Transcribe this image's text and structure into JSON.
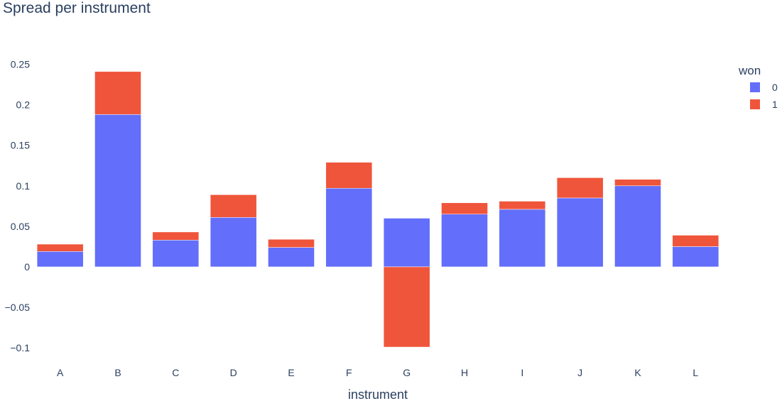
{
  "chart_data": {
    "type": "bar",
    "barmode": "relative",
    "title": "Spread per instrument",
    "xlabel": "instrument",
    "ylabel": "",
    "categories": [
      "A",
      "B",
      "C",
      "D",
      "E",
      "F",
      "G",
      "H",
      "I",
      "J",
      "K",
      "L"
    ],
    "series": [
      {
        "name": "0",
        "color": "#636efa",
        "values": [
          0.019,
          0.188,
          0.033,
          0.061,
          0.024,
          0.097,
          0.06,
          0.065,
          0.071,
          0.085,
          0.1,
          0.025
        ]
      },
      {
        "name": "1",
        "color": "#ef553b",
        "values": [
          0.009,
          0.053,
          0.01,
          0.028,
          0.01,
          0.032,
          -0.099,
          0.014,
          0.01,
          0.025,
          0.008,
          0.014
        ]
      }
    ],
    "ylim": [
      -0.113,
      0.275
    ],
    "yticks": [
      {
        "value": 0.25,
        "label": "0.25"
      },
      {
        "value": 0.2,
        "label": "0.2"
      },
      {
        "value": 0.15,
        "label": "0.15"
      },
      {
        "value": 0.1,
        "label": "0.1"
      },
      {
        "value": 0.05,
        "label": "0.05"
      },
      {
        "value": 0,
        "label": "0"
      },
      {
        "value": -0.05,
        "label": "−0.05"
      },
      {
        "value": -0.1,
        "label": "−0.1"
      }
    ],
    "legend": {
      "title": "won",
      "position": "top-right"
    },
    "grid": false
  }
}
